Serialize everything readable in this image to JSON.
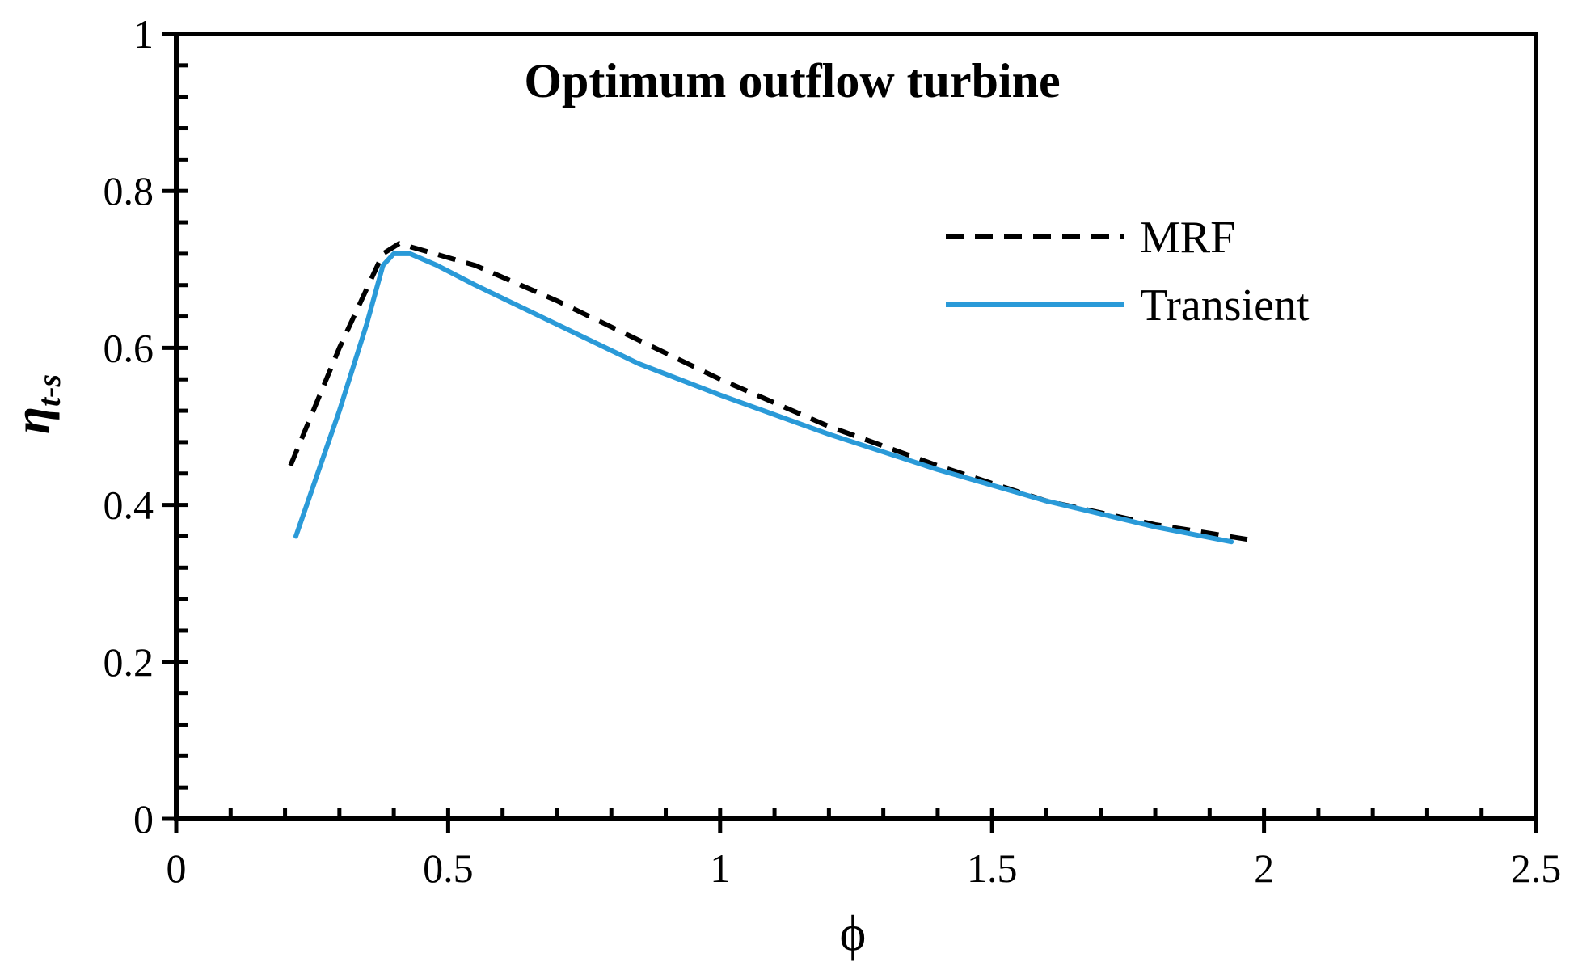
{
  "chart_data": {
    "type": "line",
    "title": "Optimum outflow turbine",
    "xlabel": "ϕ",
    "ylabel_main": "η",
    "ylabel_sub": "t-s",
    "xlim": [
      0,
      2.5
    ],
    "ylim": [
      0,
      1
    ],
    "x_ticks": [
      0,
      0.5,
      1,
      1.5,
      2,
      2.5
    ],
    "y_ticks": [
      0,
      0.2,
      0.4,
      0.6,
      0.8,
      1
    ],
    "x_tick_labels": [
      "0",
      "0.5",
      "1",
      "1.5",
      "2",
      "2.5"
    ],
    "y_tick_labels": [
      "0",
      "0.2",
      "0.4",
      "0.6",
      "0.8",
      "1"
    ],
    "x_minor_step": 0.1,
    "y_minor_step": 0.04,
    "grid": false,
    "legend_position": "top-right",
    "series": [
      {
        "name": "MRF",
        "style": "dashed",
        "color": "#000000",
        "x": [
          0.21,
          0.3,
          0.38,
          0.41,
          0.45,
          0.55,
          0.7,
          0.85,
          1.0,
          1.2,
          1.4,
          1.6,
          1.8,
          1.98
        ],
        "y": [
          0.45,
          0.6,
          0.72,
          0.733,
          0.725,
          0.705,
          0.66,
          0.61,
          0.56,
          0.5,
          0.45,
          0.405,
          0.375,
          0.355
        ]
      },
      {
        "name": "Transient",
        "style": "solid",
        "color": "#2a9ad8",
        "x": [
          0.22,
          0.3,
          0.35,
          0.38,
          0.4,
          0.43,
          0.48,
          0.55,
          0.7,
          0.85,
          1.0,
          1.2,
          1.4,
          1.6,
          1.8,
          1.94
        ],
        "y": [
          0.36,
          0.52,
          0.63,
          0.705,
          0.72,
          0.72,
          0.705,
          0.68,
          0.63,
          0.58,
          0.54,
          0.49,
          0.445,
          0.405,
          0.372,
          0.353
        ]
      }
    ]
  }
}
